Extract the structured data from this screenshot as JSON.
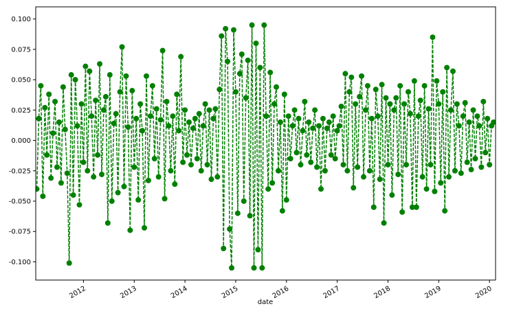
{
  "chart_data": {
    "type": "line",
    "xlabel": "date",
    "color": "#008000",
    "line_style": "dashed",
    "marker": "circle",
    "xlim": [
      2011.06,
      2020.12
    ],
    "xticks": [
      2012,
      2013,
      2014,
      2015,
      2016,
      2017,
      2018,
      2019,
      2020
    ],
    "ylim": [
      -0.115,
      0.11
    ],
    "yticks": [
      {
        "value": -0.1,
        "label": "-0.100"
      },
      {
        "value": -0.075,
        "label": "-0.075"
      },
      {
        "value": -0.05,
        "label": "-0.050"
      },
      {
        "value": -0.025,
        "label": "-0.025"
      },
      {
        "value": 0,
        "label": "0.000"
      },
      {
        "value": 0.025,
        "label": "0.025"
      },
      {
        "value": 0.05,
        "label": "0.050"
      },
      {
        "value": 0.075,
        "label": "0.075"
      },
      {
        "value": 0.1,
        "label": "0.100"
      }
    ],
    "x": [
      2011.08,
      2011.12,
      2011.16,
      2011.2,
      2011.24,
      2011.28,
      2011.32,
      2011.36,
      2011.4,
      2011.44,
      2011.48,
      2011.52,
      2011.56,
      2011.6,
      2011.64,
      2011.68,
      2011.72,
      2011.76,
      2011.8,
      2011.84,
      2011.88,
      2011.92,
      2011.96,
      2012.0,
      2012.04,
      2012.08,
      2012.12,
      2012.16,
      2012.2,
      2012.24,
      2012.28,
      2012.32,
      2012.36,
      2012.4,
      2012.44,
      2012.48,
      2012.52,
      2012.56,
      2012.6,
      2012.64,
      2012.68,
      2012.72,
      2012.76,
      2012.8,
      2012.84,
      2012.88,
      2012.92,
      2012.96,
      2013.0,
      2013.04,
      2013.08,
      2013.12,
      2013.16,
      2013.2,
      2013.24,
      2013.28,
      2013.32,
      2013.36,
      2013.4,
      2013.44,
      2013.48,
      2013.52,
      2013.56,
      2013.6,
      2013.64,
      2013.68,
      2013.72,
      2013.76,
      2013.8,
      2013.84,
      2013.88,
      2013.92,
      2013.96,
      2014.0,
      2014.04,
      2014.08,
      2014.12,
      2014.16,
      2014.2,
      2014.24,
      2014.28,
      2014.32,
      2014.36,
      2014.4,
      2014.44,
      2014.48,
      2014.52,
      2014.56,
      2014.6,
      2014.64,
      2014.68,
      2014.72,
      2014.76,
      2014.8,
      2014.84,
      2014.88,
      2014.92,
      2014.96,
      2015.0,
      2015.04,
      2015.08,
      2015.12,
      2015.16,
      2015.2,
      2015.24,
      2015.28,
      2015.32,
      2015.36,
      2015.4,
      2015.44,
      2015.48,
      2015.52,
      2015.56,
      2015.6,
      2015.64,
      2015.68,
      2015.72,
      2015.76,
      2015.8,
      2015.84,
      2015.88,
      2015.92,
      2015.96,
      2016.0,
      2016.04,
      2016.08,
      2016.12,
      2016.16,
      2016.2,
      2016.24,
      2016.28,
      2016.32,
      2016.36,
      2016.4,
      2016.44,
      2016.48,
      2016.52,
      2016.56,
      2016.6,
      2016.64,
      2016.68,
      2016.72,
      2016.76,
      2016.8,
      2016.84,
      2016.88,
      2016.92,
      2016.96,
      2017.0,
      2017.04,
      2017.08,
      2017.12,
      2017.16,
      2017.2,
      2017.24,
      2017.28,
      2017.32,
      2017.36,
      2017.4,
      2017.44,
      2017.48,
      2017.52,
      2017.56,
      2017.6,
      2017.64,
      2017.68,
      2017.72,
      2017.76,
      2017.8,
      2017.84,
      2017.88,
      2017.92,
      2017.96,
      2018.0,
      2018.04,
      2018.08,
      2018.12,
      2018.16,
      2018.2,
      2018.24,
      2018.28,
      2018.32,
      2018.36,
      2018.4,
      2018.44,
      2018.48,
      2018.52,
      2018.56,
      2018.6,
      2018.64,
      2018.68,
      2018.72,
      2018.76,
      2018.8,
      2018.84,
      2018.88,
      2018.92,
      2018.96,
      2019.0,
      2019.04,
      2019.08,
      2019.12,
      2019.16,
      2019.2,
      2019.24,
      2019.28,
      2019.32,
      2019.36,
      2019.4,
      2019.44,
      2019.48,
      2019.52,
      2019.56,
      2019.6,
      2019.64,
      2019.68,
      2019.72,
      2019.76,
      2019.8,
      2019.84,
      2019.88,
      2019.92,
      2019.96,
      2020.0,
      2020.04,
      2020.08
    ],
    "values": [
      -0.04,
      0.018,
      0.045,
      -0.046,
      0.027,
      -0.012,
      0.038,
      -0.031,
      0.006,
      0.032,
      -0.022,
      0.015,
      -0.035,
      0.044,
      0.009,
      -0.027,
      -0.101,
      0.054,
      -0.045,
      0.05,
      0.012,
      -0.053,
      0.03,
      -0.018,
      0.061,
      -0.025,
      0.057,
      0.02,
      -0.03,
      0.033,
      -0.012,
      0.063,
      -0.028,
      0.025,
      0.036,
      -0.068,
      0.054,
      -0.05,
      0.014,
      0.022,
      -0.043,
      0.04,
      0.077,
      -0.038,
      0.053,
      0.011,
      -0.074,
      0.041,
      -0.022,
      0.018,
      -0.049,
      0.03,
      0.008,
      -0.072,
      0.053,
      -0.033,
      0.02,
      0.045,
      -0.015,
      0.026,
      -0.03,
      0.017,
      0.074,
      -0.048,
      0.032,
      0.012,
      -0.025,
      0.02,
      -0.036,
      0.038,
      0.008,
      0.069,
      -0.018,
      0.025,
      -0.012,
      0.015,
      -0.02,
      0.01,
      0.018,
      -0.015,
      0.022,
      -0.025,
      0.012,
      0.03,
      -0.02,
      0.025,
      -0.032,
      0.018,
      0.026,
      -0.03,
      0.042,
      0.086,
      -0.089,
      0.092,
      0.065,
      -0.073,
      -0.105,
      0.091,
      0.04,
      -0.06,
      0.055,
      0.071,
      -0.05,
      0.035,
      0.066,
      -0.062,
      0.095,
      -0.105,
      0.08,
      -0.09,
      0.06,
      -0.105,
      0.095,
      0.02,
      -0.04,
      0.056,
      -0.035,
      0.03,
      0.044,
      -0.025,
      0.015,
      -0.058,
      0.038,
      -0.049,
      0.02,
      -0.015,
      0.012,
      0.025,
      -0.01,
      0.018,
      -0.02,
      0.008,
      0.032,
      -0.012,
      0.015,
      -0.018,
      0.01,
      0.025,
      -0.022,
      0.012,
      -0.04,
      0.018,
      -0.025,
      0.01,
      0.015,
      -0.012,
      0.02,
      -0.015,
      0.008,
      0.012,
      0.028,
      -0.02,
      0.055,
      -0.025,
      0.04,
      0.052,
      -0.039,
      0.03,
      -0.022,
      0.036,
      0.053,
      -0.03,
      0.025,
      0.045,
      -0.025,
      0.018,
      -0.055,
      0.042,
      0.02,
      -0.032,
      0.046,
      -0.068,
      0.035,
      -0.02,
      0.03,
      -0.045,
      0.025,
      0.035,
      -0.028,
      0.045,
      -0.059,
      0.03,
      -0.02,
      0.04,
      0.022,
      -0.055,
      0.049,
      -0.055,
      0.02,
      0.033,
      -0.03,
      0.045,
      -0.04,
      0.026,
      -0.02,
      0.085,
      -0.042,
      0.049,
      0.03,
      -0.035,
      0.04,
      -0.058,
      0.06,
      -0.03,
      0.025,
      0.057,
      -0.025,
      0.03,
      0.012,
      -0.027,
      0.02,
      0.031,
      -0.018,
      0.015,
      -0.024,
      0.025,
      -0.015,
      0.02,
      0.012,
      -0.022,
      0.032,
      -0.01,
      0.018,
      -0.02,
      0.012,
      0.015
    ]
  }
}
